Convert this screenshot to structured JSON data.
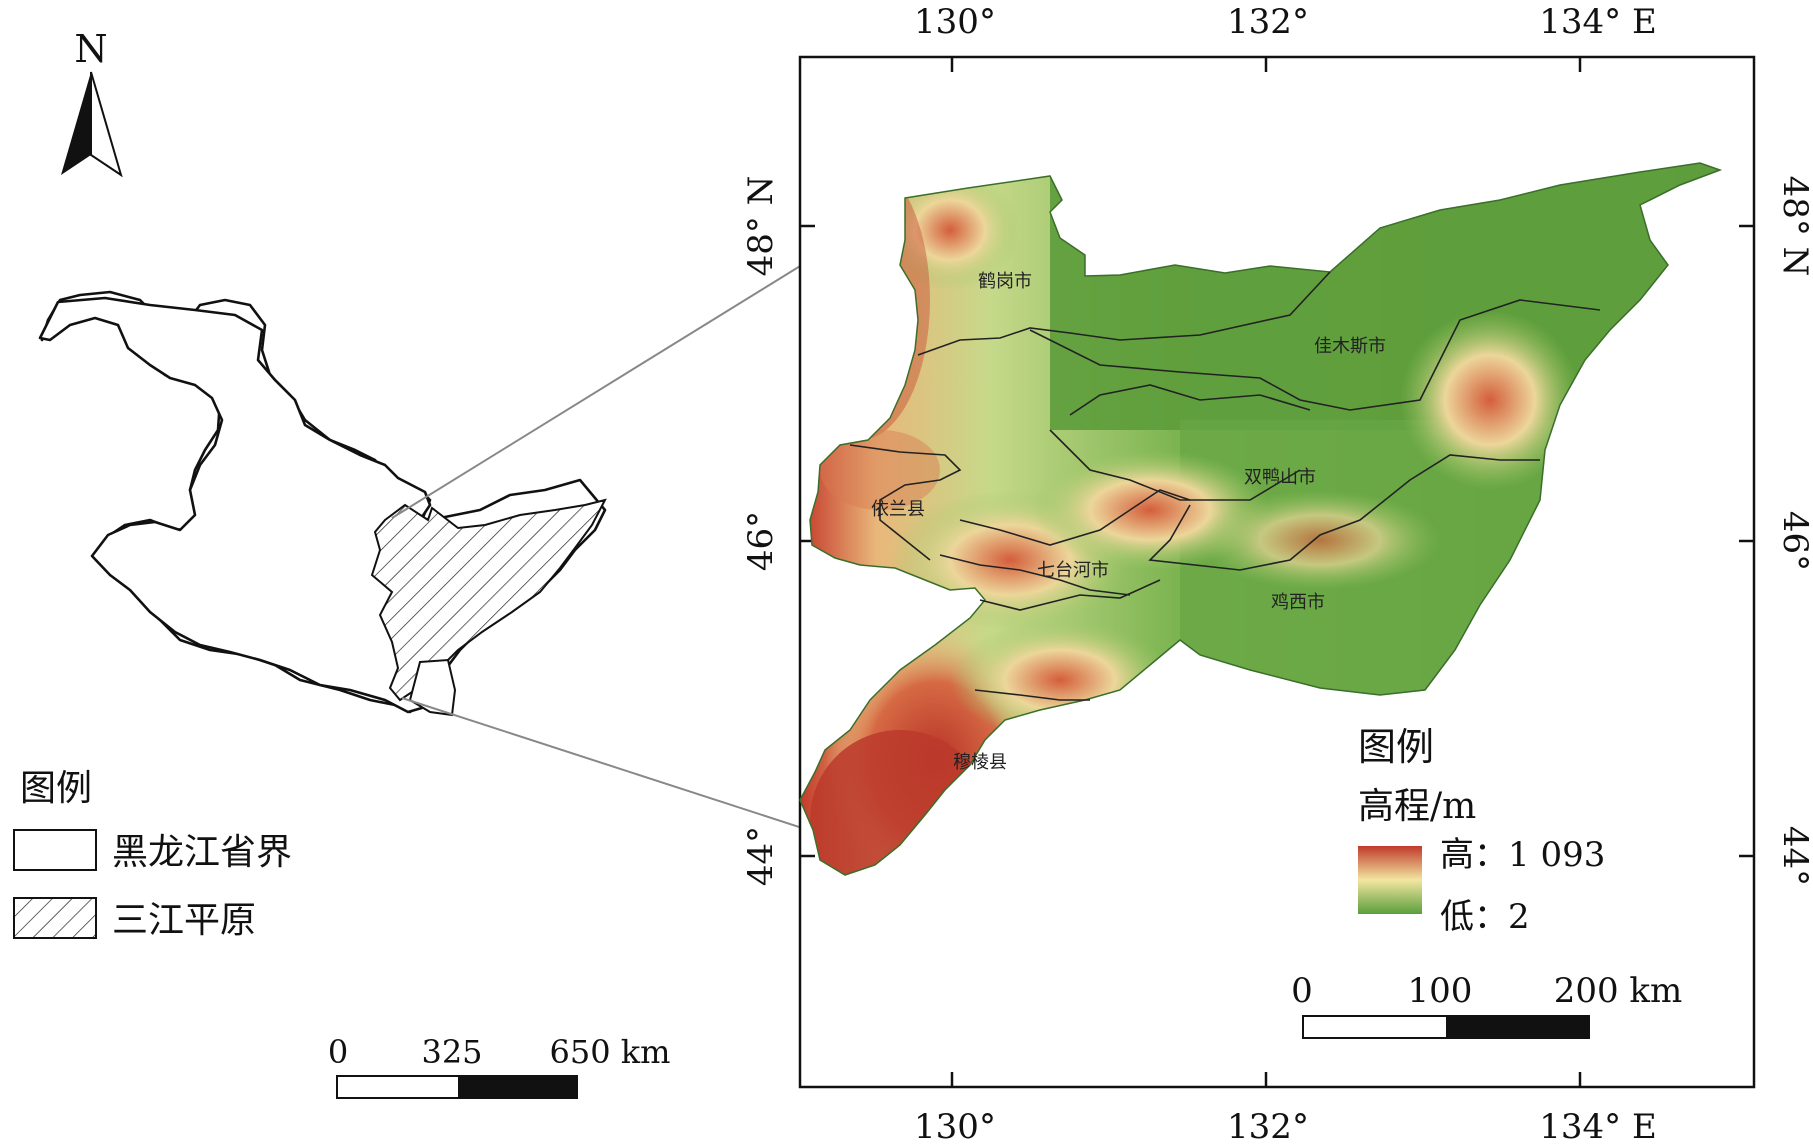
{
  "north_arrow": {
    "label": "N"
  },
  "inset_legend": {
    "title": "图例",
    "items": [
      {
        "label": "黑龙江省界"
      },
      {
        "label": "三江平原"
      }
    ]
  },
  "inset_scale": {
    "labels": [
      "0",
      "325",
      "650 km"
    ]
  },
  "main_map": {
    "top_ticks": [
      "130°",
      "132°",
      "134°  E"
    ],
    "bottom_ticks": [
      "130°",
      "132°",
      "134°  E"
    ],
    "left_ticks": [
      "44°",
      "46°",
      "48°  N"
    ],
    "right_ticks": [
      "44°",
      "46°",
      "48°  N"
    ],
    "places": [
      "鹤岗市",
      "佳木斯市",
      "依兰县",
      "双鸭山市",
      "七台河市",
      "鸡西市",
      "穆棱县"
    ]
  },
  "elevation_legend": {
    "title": "图例",
    "subtitle": "高程/m",
    "high_label": "高：1 093",
    "low_label": "低：2",
    "colors": {
      "high": "#c0392b",
      "mid": "#f2e6a0",
      "low": "#5a9e3c"
    }
  },
  "main_scale": {
    "labels": [
      "0",
      "100",
      "200 km"
    ]
  }
}
